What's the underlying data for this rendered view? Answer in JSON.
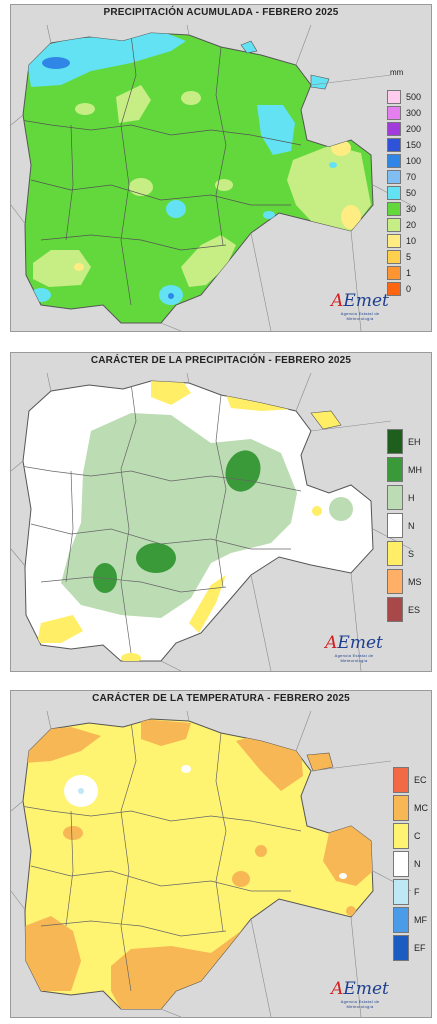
{
  "panels": [
    {
      "title": "PRECIPITACIÓN ACUMULADA - FEBRERO 2025",
      "legend_unit": "mm",
      "legend": [
        {
          "label": "500",
          "color": "#ffccee"
        },
        {
          "label": "300",
          "color": "#e57ff0"
        },
        {
          "label": "200",
          "color": "#a13bdc"
        },
        {
          "label": "150",
          "color": "#2e52d8"
        },
        {
          "label": "100",
          "color": "#2f86e6"
        },
        {
          "label": "70",
          "color": "#7fbdf2"
        },
        {
          "label": "50",
          "color": "#62e2f2"
        },
        {
          "label": "30",
          "color": "#62d83c"
        },
        {
          "label": "20",
          "color": "#c6ee85"
        },
        {
          "label": "10",
          "color": "#ffec82"
        },
        {
          "label": "5",
          "color": "#ffd04e"
        },
        {
          "label": "1",
          "color": "#ff9433"
        },
        {
          "label": "0",
          "color": "#ff6611"
        }
      ],
      "logo_name": "AEMET",
      "logo_text": "AEmet",
      "logo_subtitle": "Agencia Estatal de Meteorología"
    },
    {
      "title": "CARÁCTER DE LA PRECIPITACIÓN - FEBRERO 2025",
      "legend_unit": "",
      "legend": [
        {
          "label": "EH",
          "color": "#1e5f1e"
        },
        {
          "label": "MH",
          "color": "#3a9a3a"
        },
        {
          "label": "H",
          "color": "#bcdcb4"
        },
        {
          "label": "N",
          "color": "#ffffff"
        },
        {
          "label": "S",
          "color": "#ffee66"
        },
        {
          "label": "MS",
          "color": "#ffb066"
        },
        {
          "label": "ES",
          "color": "#a84848"
        }
      ],
      "logo_name": "AEMET",
      "logo_text": "AEmet",
      "logo_subtitle": "Agencia Estatal de Meteorología"
    },
    {
      "title": "CARÁCTER DE LA TEMPERATURA - FEBRERO 2025",
      "legend_unit": "",
      "legend": [
        {
          "label": "EC",
          "color": "#f26a44"
        },
        {
          "label": "MC",
          "color": "#f7b754"
        },
        {
          "label": "C",
          "color": "#fff372"
        },
        {
          "label": "N",
          "color": "#ffffff"
        },
        {
          "label": "F",
          "color": "#bfe8f7"
        },
        {
          "label": "MF",
          "color": "#4a9ce8"
        },
        {
          "label": "EF",
          "color": "#1a5cc0"
        }
      ],
      "logo_name": "AEMET",
      "logo_text": "AEmet",
      "logo_subtitle": "Agencia Estatal de Meteorología"
    }
  ],
  "colors": {
    "outside_region": "#d9d9d9",
    "province_border": "#6f6f6f",
    "panel_border": "#9a9a9a"
  }
}
